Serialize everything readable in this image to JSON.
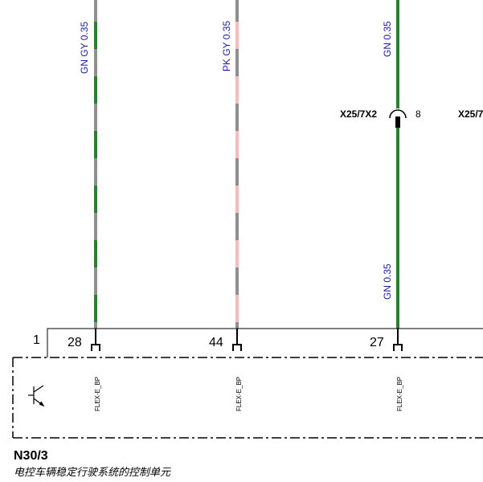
{
  "wires": [
    {
      "id": "w1",
      "label": "GN GY 0.35",
      "pin": "28",
      "colors": [
        "#2e7d32",
        "#8f8f8f"
      ]
    },
    {
      "id": "w2",
      "label": "PK GY 0.35",
      "pin": "44",
      "colors": [
        "#f6bcbc",
        "#8f8f8f"
      ]
    },
    {
      "id": "w3",
      "label_top": "GN  0.35",
      "label_bottom": "GN  0.35",
      "pin": "27",
      "colors": [
        "#2e7d32"
      ]
    }
  ],
  "connector": {
    "left_label": "X25/7X2",
    "pin_number": "8",
    "right_label": "X25/7"
  },
  "component": {
    "pin_1": "1",
    "flex_label": "FLEX-E_BP",
    "id": "N30/3",
    "description": "电控车辆稳定行驶系统的控制单元"
  },
  "icons": [
    "transistor-icon",
    "connector-plug-icon",
    "pin-terminal-icon"
  ],
  "colors": {
    "green_wire": "#2e7d32",
    "gray_wire": "#8f8f8f",
    "pink_wire": "#f6bcbc",
    "wire_label": "#1a1aa0"
  }
}
